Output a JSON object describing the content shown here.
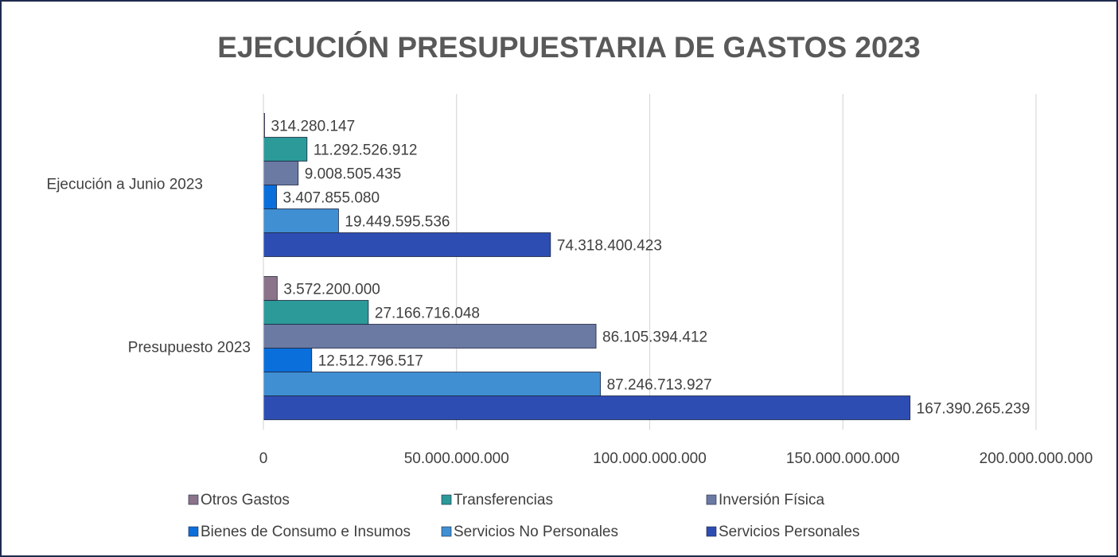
{
  "chart_data": {
    "type": "hbar",
    "title": "EJECUCIÓN PRESUPUESTARIA DE GASTOS 2023",
    "categories": [
      "Presupuesto 2023",
      "Ejecución a Junio 2023"
    ],
    "series": [
      {
        "name": "Servicios Personales",
        "color": "#2e4db3",
        "values": [
          167390265239,
          74318400423
        ],
        "value_labels": [
          "167.390.265.239",
          "74.318.400.423"
        ]
      },
      {
        "name": "Servicios No Personales",
        "color": "#3f8fd2",
        "values": [
          87246713927,
          19449595536
        ],
        "value_labels": [
          "87.246.713.927",
          "19.449.595.536"
        ]
      },
      {
        "name": "Bienes de Consumo e Insumos",
        "color": "#0b6fdb",
        "values": [
          12512796517,
          3407855080
        ],
        "value_labels": [
          "12.512.796.517",
          "3.407.855.080"
        ]
      },
      {
        "name": "Inversión Física",
        "color": "#6a7aa3",
        "values": [
          86105394412,
          9008505435
        ],
        "value_labels": [
          "86.105.394.412",
          "9.008.505.435"
        ]
      },
      {
        "name": "Transferencias",
        "color": "#2b9a98",
        "values": [
          27166716048,
          11292526912
        ],
        "value_labels": [
          "27.166.716.048",
          "11.292.526.912"
        ]
      },
      {
        "name": "Otros Gastos",
        "color": "#8b7389",
        "values": [
          3572200000,
          314280147
        ],
        "value_labels": [
          "3.572.200.000",
          "314.280.147"
        ]
      }
    ],
    "xlim": [
      0,
      200000000000
    ],
    "xticks": [
      0,
      {
        "value": 50000000000,
        "label": "50.000.000.000"
      },
      {
        "value": 100000000000,
        "label": "100.000.000.000"
      },
      {
        "value": 150000000000,
        "label": "150.000.000.000"
      },
      {
        "value": 200000000000,
        "label": "200.000.000.000"
      }
    ],
    "grid": true
  }
}
